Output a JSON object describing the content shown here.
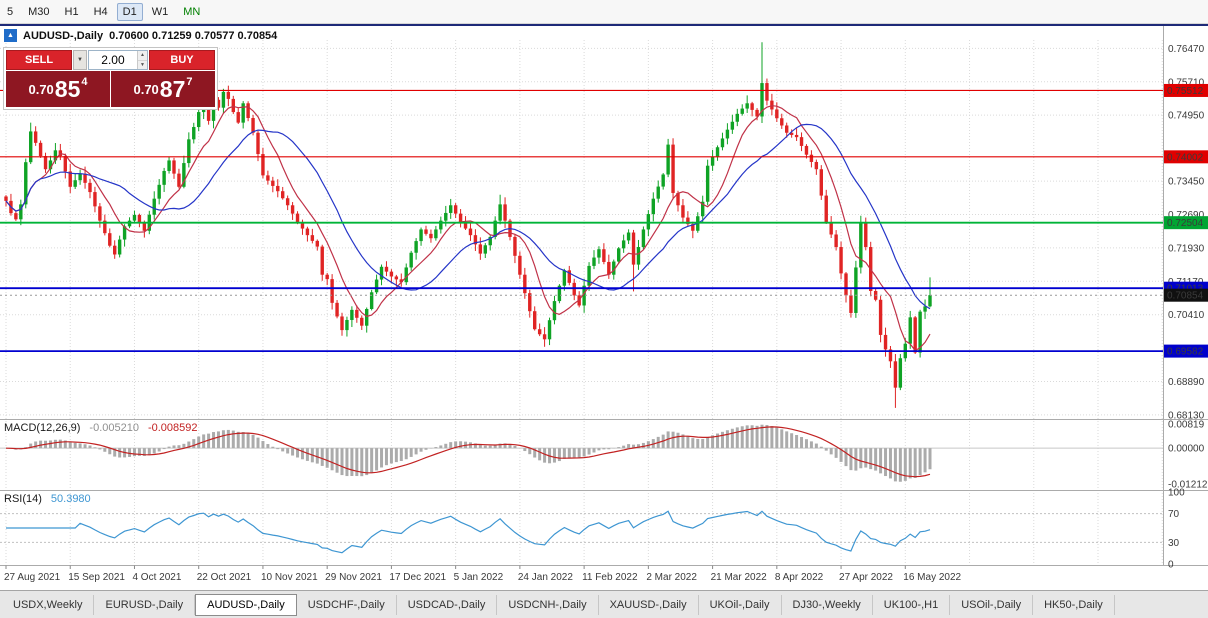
{
  "toolbar": {
    "timeframes": [
      "5",
      "M30",
      "H1",
      "H4",
      "D1",
      "W1",
      "MN"
    ]
  },
  "chart_header": {
    "symbol_title": "AUDUSD-,Daily",
    "ohlc": "0.70600 0.71259 0.70577 0.70854"
  },
  "trade_panel": {
    "sell_label": "SELL",
    "buy_label": "BUY",
    "volume": "2.00",
    "dropdown_glyph": "▼",
    "spin_up_glyph": "▲",
    "spin_down_glyph": "▼",
    "sell_price": {
      "prefix": "0.70",
      "big": "85",
      "sup": "4"
    },
    "buy_price": {
      "prefix": "0.70",
      "big": "87",
      "sup": "7"
    }
  },
  "macd_label": {
    "name": "MACD(12,26,9)",
    "value": "-0.005210",
    "signal": "-0.008592"
  },
  "rsi_label": {
    "name": "RSI(14)",
    "value": "50.3980"
  },
  "tabs": [
    "USDX,Weekly",
    "EURUSD-,Daily",
    "AUDUSD-,Daily",
    "USDCHF-,Daily",
    "USDCAD-,Daily",
    "USDCNH-,Daily",
    "XAUUSD-,Daily",
    "UKOil-,Daily",
    "DJ30-,Weekly",
    "UK100-,H1",
    "USOil-,Daily",
    "HK50-,Daily"
  ],
  "chart_data": {
    "type": "candlestick",
    "symbol": "AUDUSD",
    "timeframe": "Daily",
    "ohlc_current": {
      "open": 0.706,
      "high": 0.71259,
      "low": 0.70577,
      "close": 0.70854
    },
    "ylim": [
      0.6806,
      0.7666
    ],
    "candle_count": 188,
    "first_open": 0.731,
    "candles_per_label": 13,
    "date_labels": [
      "27 Aug 2021",
      "15 Sep 2021",
      "4 Oct 2021",
      "22 Oct 2021",
      "10 Nov 2021",
      "29 Nov 2021",
      "17 Dec 2021",
      "5 Jan 2022",
      "24 Jan 2022",
      "11 Feb 2022",
      "2 Mar 2022",
      "21 Mar 2022",
      "8 Apr 2022",
      "27 Apr 2022",
      "16 May 2022"
    ],
    "anchors": [
      [
        0,
        0.73
      ],
      [
        1,
        0.7272
      ],
      [
        2,
        0.7258
      ],
      [
        3,
        0.7292
      ],
      [
        4,
        0.7388
      ],
      [
        5,
        0.7458
      ],
      [
        6,
        0.7432
      ],
      [
        8,
        0.7372
      ],
      [
        9,
        0.7392
      ],
      [
        10,
        0.7415
      ],
      [
        11,
        0.7402
      ],
      [
        13,
        0.7332
      ],
      [
        15,
        0.7362
      ],
      [
        17,
        0.732
      ],
      [
        19,
        0.7255
      ],
      [
        21,
        0.7198
      ],
      [
        22,
        0.7178
      ],
      [
        23,
        0.7212
      ],
      [
        24,
        0.7242
      ],
      [
        26,
        0.7268
      ],
      [
        28,
        0.7232
      ],
      [
        30,
        0.7305
      ],
      [
        32,
        0.7368
      ],
      [
        33,
        0.7392
      ],
      [
        35,
        0.7332
      ],
      [
        37,
        0.744
      ],
      [
        38,
        0.7468
      ],
      [
        39,
        0.7502
      ],
      [
        40,
        0.7512
      ],
      [
        41,
        0.7482
      ],
      [
        42,
        0.753
      ],
      [
        43,
        0.7512
      ],
      [
        44,
        0.7548
      ],
      [
        45,
        0.7532
      ],
      [
        46,
        0.7502
      ],
      [
        47,
        0.7478
      ],
      [
        48,
        0.7522
      ],
      [
        50,
        0.7455
      ],
      [
        52,
        0.7358
      ],
      [
        55,
        0.7322
      ],
      [
        57,
        0.729
      ],
      [
        59,
        0.7252
      ],
      [
        61,
        0.7222
      ],
      [
        63,
        0.7196
      ],
      [
        64,
        0.7132
      ],
      [
        65,
        0.7122
      ],
      [
        66,
        0.7068
      ],
      [
        68,
        0.7006
      ],
      [
        70,
        0.7052
      ],
      [
        72,
        0.7016
      ],
      [
        74,
        0.7092
      ],
      [
        76,
        0.715
      ],
      [
        78,
        0.7128
      ],
      [
        80,
        0.7115
      ],
      [
        82,
        0.7182
      ],
      [
        84,
        0.7235
      ],
      [
        86,
        0.7215
      ],
      [
        88,
        0.7255
      ],
      [
        90,
        0.729
      ],
      [
        92,
        0.7252
      ],
      [
        94,
        0.7222
      ],
      [
        96,
        0.718
      ],
      [
        98,
        0.7218
      ],
      [
        100,
        0.7292
      ],
      [
        102,
        0.7218
      ],
      [
        104,
        0.7132
      ],
      [
        105,
        0.709
      ],
      [
        107,
        0.7008
      ],
      [
        109,
        0.6985
      ],
      [
        111,
        0.7072
      ],
      [
        113,
        0.7142
      ],
      [
        115,
        0.7085
      ],
      [
        116,
        0.7062
      ],
      [
        118,
        0.7152
      ],
      [
        120,
        0.719
      ],
      [
        122,
        0.7132
      ],
      [
        124,
        0.7192
      ],
      [
        126,
        0.7228
      ],
      [
        127,
        0.7155
      ],
      [
        129,
        0.7235
      ],
      [
        131,
        0.7305
      ],
      [
        133,
        0.736
      ],
      [
        134,
        0.7428
      ],
      [
        135,
        0.7318
      ],
      [
        137,
        0.7262
      ],
      [
        139,
        0.7232
      ],
      [
        141,
        0.7298
      ],
      [
        142,
        0.738
      ],
      [
        144,
        0.7422
      ],
      [
        146,
        0.7462
      ],
      [
        148,
        0.7498
      ],
      [
        150,
        0.7522
      ],
      [
        152,
        0.7492
      ],
      [
        153,
        0.7568
      ],
      [
        154,
        0.7528
      ],
      [
        156,
        0.7488
      ],
      [
        158,
        0.7455
      ],
      [
        160,
        0.7445
      ],
      [
        162,
        0.7405
      ],
      [
        164,
        0.7372
      ],
      [
        165,
        0.7312
      ],
      [
        166,
        0.7252
      ],
      [
        168,
        0.7195
      ],
      [
        169,
        0.7135
      ],
      [
        170,
        0.7085
      ],
      [
        171,
        0.7045
      ],
      [
        173,
        0.7252
      ],
      [
        174,
        0.7195
      ],
      [
        175,
        0.7095
      ],
      [
        176,
        0.7075
      ],
      [
        177,
        0.6995
      ],
      [
        178,
        0.6962
      ],
      [
        179,
        0.6935
      ],
      [
        180,
        0.6875
      ],
      [
        181,
        0.6942
      ],
      [
        182,
        0.6975
      ],
      [
        183,
        0.7035
      ],
      [
        184,
        0.6955
      ],
      [
        185,
        0.7048
      ],
      [
        186,
        0.706
      ],
      [
        187,
        0.70854
      ]
    ],
    "wicks": [
      [
        5,
        0.7478,
        null
      ],
      [
        44,
        0.7555,
        null
      ],
      [
        68,
        null,
        0.6993
      ],
      [
        100,
        0.7314,
        null
      ],
      [
        109,
        null,
        0.6968
      ],
      [
        127,
        null,
        0.7094
      ],
      [
        134,
        0.7441,
        null
      ],
      [
        150,
        0.754,
        null
      ],
      [
        153,
        0.7661,
        null
      ],
      [
        180,
        null,
        0.6829
      ],
      [
        187,
        0.71259,
        0.70577
      ]
    ],
    "ma": [
      {
        "period": 8,
        "color": "#c03248"
      },
      {
        "period": 20,
        "color": "#2535c8"
      }
    ],
    "hlines": [
      {
        "v": 0.75512,
        "c": "#e00000",
        "w": 1.2
      },
      {
        "v": 0.74002,
        "c": "#e00000",
        "w": 1.2
      },
      {
        "v": 0.72504,
        "c": "#00b438",
        "w": 1.8
      },
      {
        "v": 0.71013,
        "c": "#0000d0",
        "w": 1.8
      },
      {
        "v": 0.69582,
        "c": "#0000d0",
        "w": 1.8
      }
    ],
    "bid_line": 0.70854,
    "price_scale": {
      "ticks": [
        {
          "v": 0.7647,
          "t": "0.76470"
        },
        {
          "v": 0.7571,
          "t": "0.75710"
        },
        {
          "v": 0.7495,
          "t": "0.74950"
        },
        {
          "v": 0.7345,
          "t": "0.73450"
        },
        {
          "v": 0.7269,
          "t": "0.72690"
        },
        {
          "v": 0.7193,
          "t": "0.71930"
        },
        {
          "v": 0.7117,
          "t": "0.71170"
        },
        {
          "v": 0.7041,
          "t": "0.70410"
        },
        {
          "v": 0.6889,
          "t": "0.68890"
        },
        {
          "v": 0.6813,
          "t": "0.68130"
        }
      ],
      "badges": [
        {
          "t": "0.75512",
          "v": 0.75512,
          "c": "#e00000"
        },
        {
          "t": "0.74002",
          "v": 0.74002,
          "c": "#e00000"
        },
        {
          "t": "0.72504",
          "v": 0.72504,
          "c": "#00a532"
        },
        {
          "t": "0.71013",
          "v": 0.71013,
          "c": "#0000cc"
        },
        {
          "t": "0.70854",
          "v": 0.70854,
          "c": "#101010"
        },
        {
          "t": "0.69582",
          "v": 0.69582,
          "c": "#0000cc"
        }
      ]
    },
    "macd": {
      "fast": 12,
      "slow": 26,
      "signal": 9,
      "ylim": [
        -0.0135,
        0.0092
      ],
      "hist_color": "#ababab",
      "signal_color": "#c22222",
      "scale_labels": [
        {
          "v": 0.00819,
          "t": "0.00819"
        },
        {
          "v": 0.0,
          "t": "0.00000"
        },
        {
          "v": -0.01212,
          "t": "-0.01212"
        }
      ]
    },
    "rsi": {
      "period": 14,
      "color": "#3e96d2",
      "levels": [
        70,
        30
      ],
      "scale_labels": [
        {
          "v": 100,
          "t": "100"
        },
        {
          "v": 70,
          "t": "70"
        },
        {
          "v": 30,
          "t": "30"
        },
        {
          "v": 0,
          "t": "0"
        }
      ]
    },
    "colors": {
      "bull": "#0fa325",
      "bear": "#e02424",
      "grid": "#dadada",
      "sep": "#ababab",
      "top_border": "#1e2a78",
      "axis_text": "#3a3a3a"
    }
  }
}
